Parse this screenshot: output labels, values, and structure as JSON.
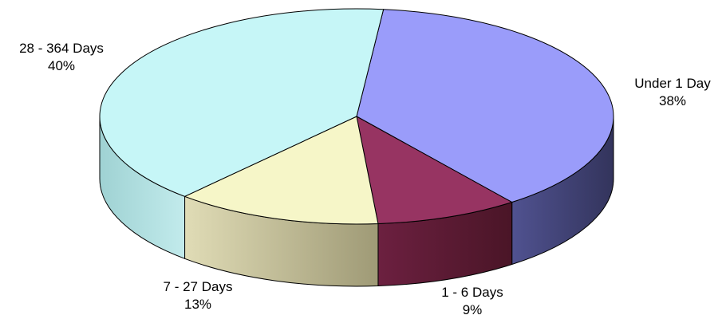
{
  "chart_data": {
    "type": "pie",
    "style": "3d",
    "title": "",
    "legend": "none",
    "slices": [
      {
        "label": "Under 1 Day",
        "value": 38,
        "percent_label": "38%",
        "color": "#9a9cfa",
        "side_color": "#3f4070"
      },
      {
        "label": "1 - 6    Days",
        "value": 9,
        "percent_label": "9%",
        "color": "#973462",
        "side_color": "#54182f"
      },
      {
        "label": "7 - 27 Days",
        "value": 13,
        "percent_label": "13%",
        "color": "#f6f6c8",
        "side_color": "#b1ac85"
      },
      {
        "label": "28 - 364 Days",
        "value": 40,
        "percent_label": "40%",
        "color": "#c6f6f7",
        "side_color": "#a9dada"
      }
    ]
  }
}
